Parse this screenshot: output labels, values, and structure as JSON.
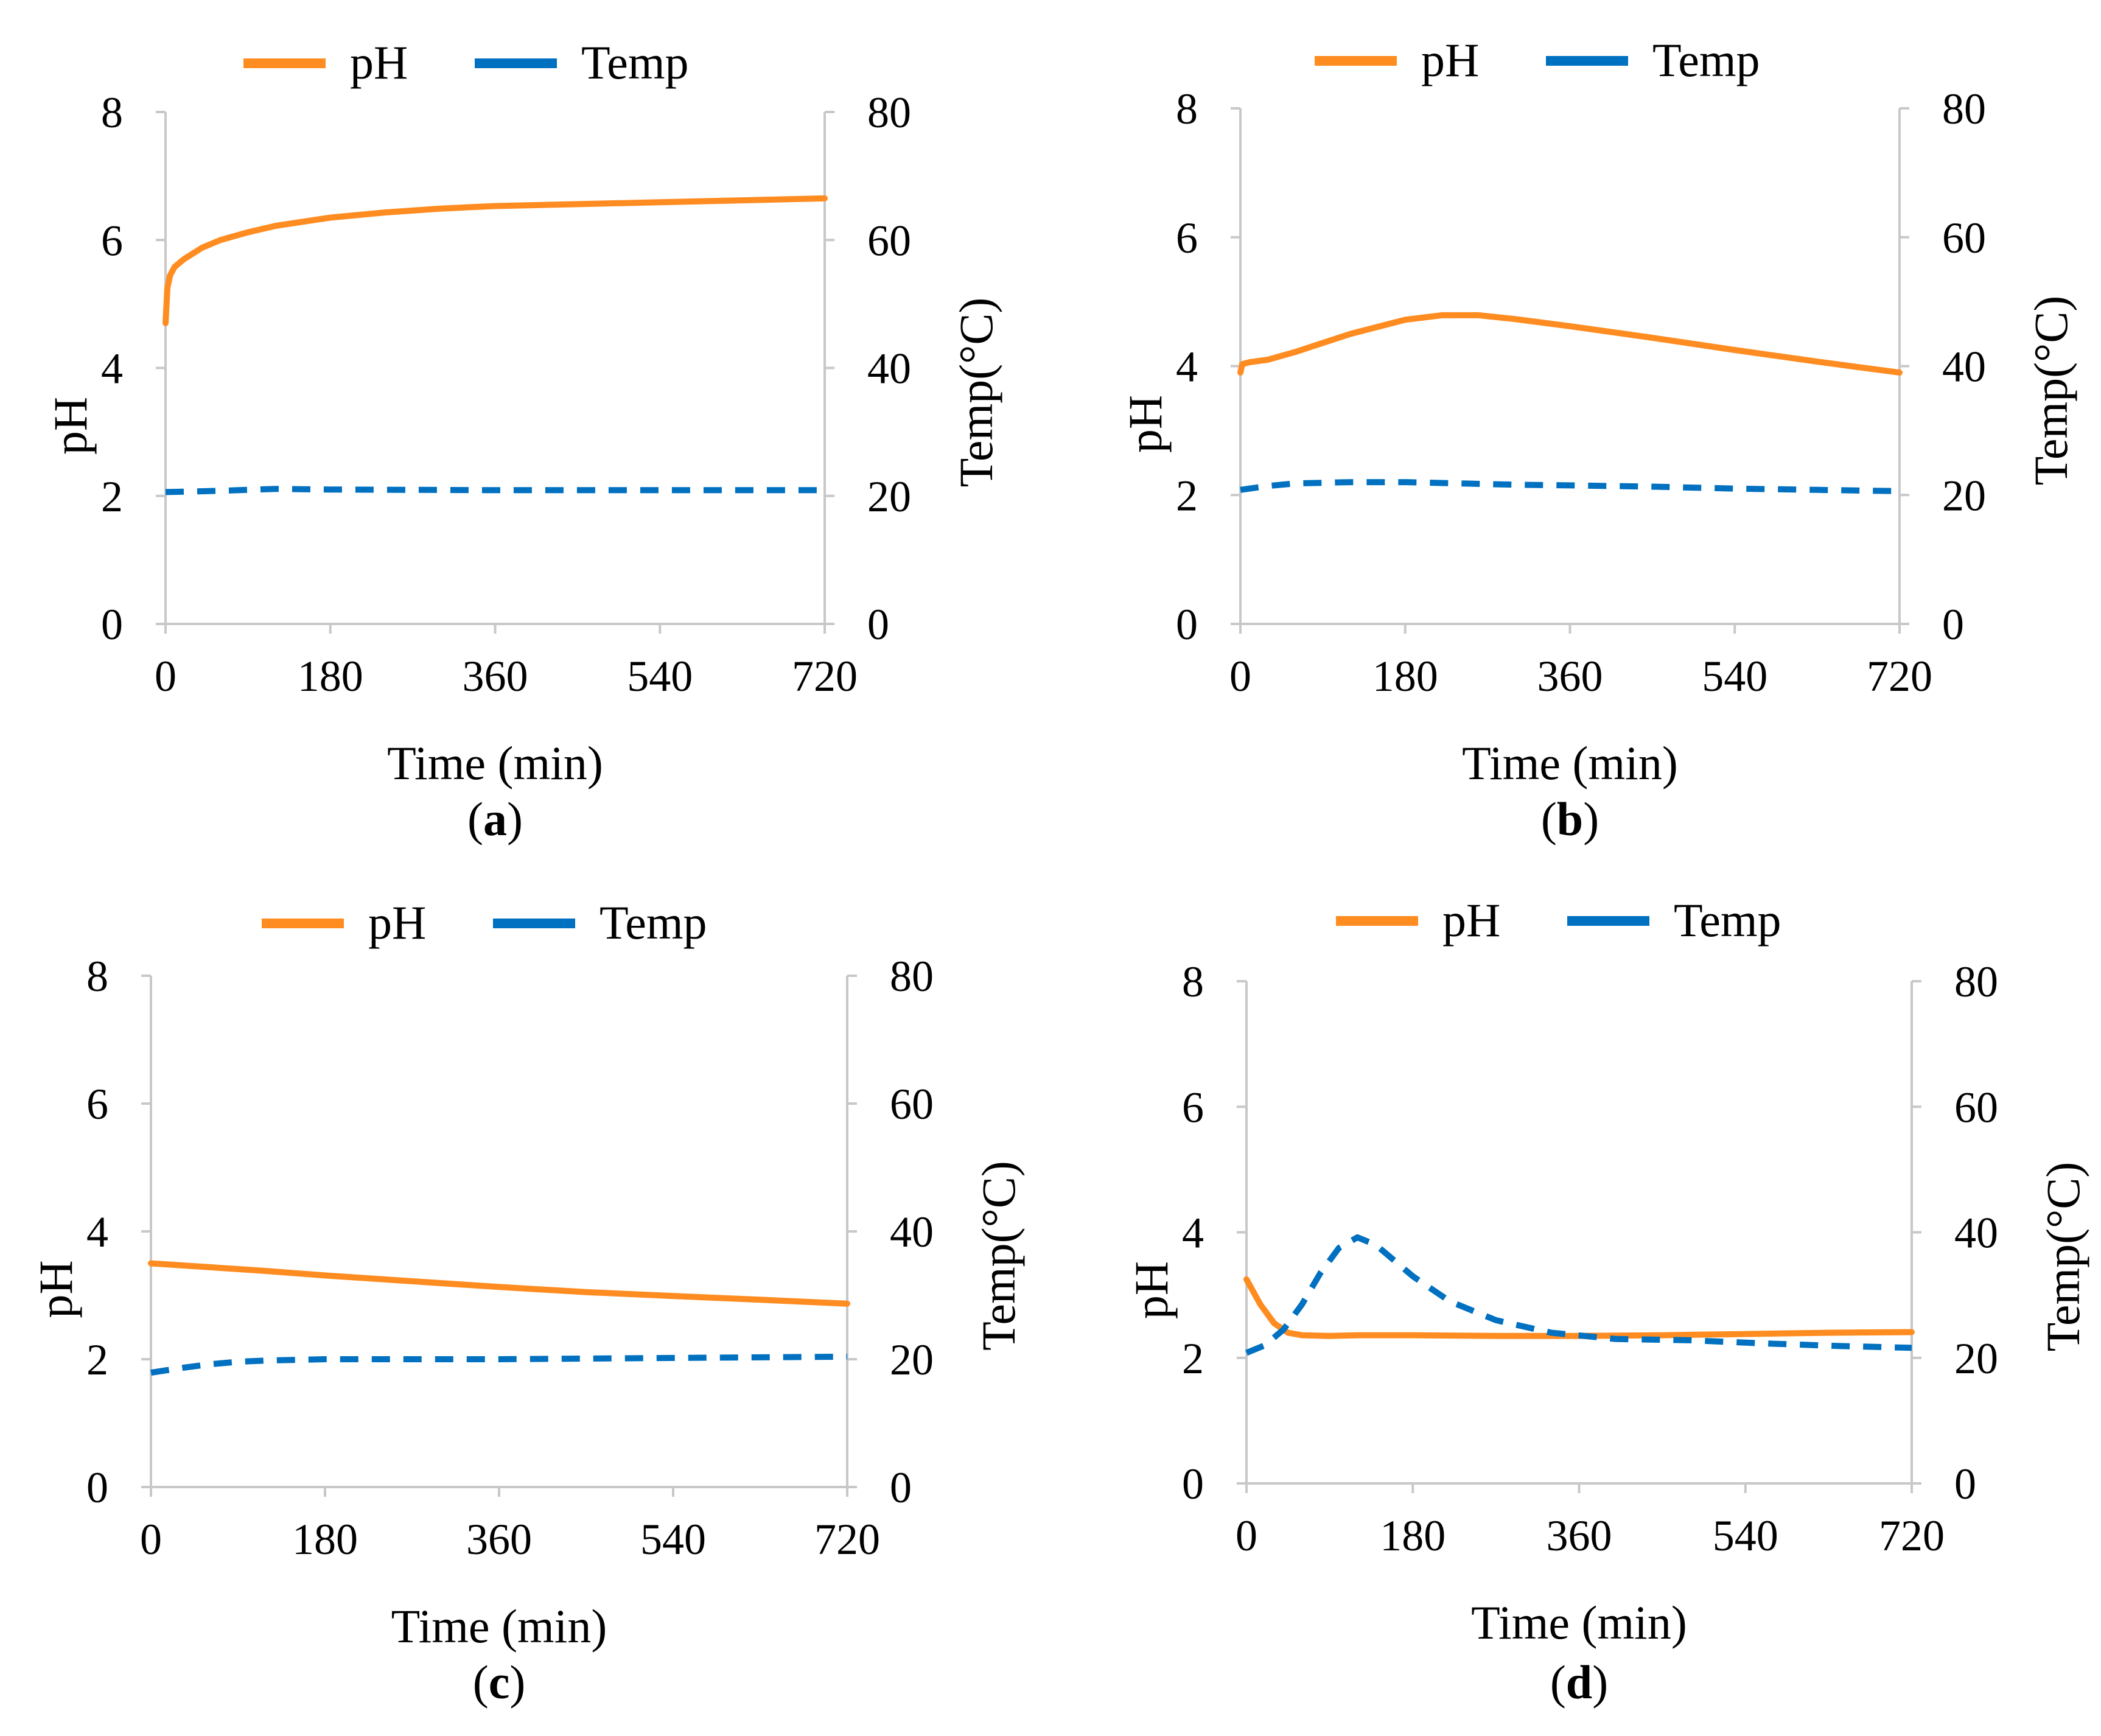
{
  "figure": {
    "title": ""
  },
  "colors": {
    "ph": "#FF8C21",
    "temp": "#0070C0",
    "axis": "#C8C8C8"
  },
  "legend_items": {
    "ph": "pH",
    "temp": "Temp"
  },
  "chart_data": [
    {
      "panel_label": {
        "open": "(",
        "letter": "a",
        "close": ")"
      },
      "type": "line",
      "xlabel": "Time (min)",
      "ylabel": "pH",
      "y2label": "Temp(°C)",
      "xlim": [
        0,
        720
      ],
      "ylim": [
        0,
        8
      ],
      "y2lim": [
        0,
        80
      ],
      "xticks": [
        0,
        180,
        360,
        540,
        720
      ],
      "yticks": [
        0,
        2,
        4,
        6,
        8
      ],
      "y2ticks": [
        0,
        20,
        40,
        60,
        80
      ],
      "grid": false,
      "legend": "top",
      "series": [
        {
          "name": "pH",
          "axis": "left",
          "style": "solid",
          "x": [
            0,
            2,
            5,
            10,
            20,
            40,
            60,
            90,
            120,
            180,
            240,
            300,
            360,
            450,
            540,
            630,
            720
          ],
          "values": [
            4.7,
            5.25,
            5.45,
            5.58,
            5.7,
            5.88,
            6.0,
            6.12,
            6.22,
            6.35,
            6.43,
            6.49,
            6.53,
            6.56,
            6.59,
            6.62,
            6.65
          ]
        },
        {
          "name": "Temp",
          "axis": "right",
          "style": "dashed",
          "x": [
            0,
            60,
            120,
            180,
            360,
            540,
            720
          ],
          "values": [
            20.6,
            20.8,
            21.1,
            21.0,
            20.9,
            20.9,
            20.9
          ]
        }
      ]
    },
    {
      "panel_label": {
        "open": "(",
        "letter": "b",
        "close": ")"
      },
      "type": "line",
      "xlabel": "Time (min)",
      "ylabel": "pH",
      "y2label": "Temp(°C)",
      "xlim": [
        0,
        720
      ],
      "ylim": [
        0,
        8
      ],
      "y2lim": [
        0,
        80
      ],
      "xticks": [
        0,
        180,
        360,
        540,
        720
      ],
      "yticks": [
        0,
        2,
        4,
        6,
        8
      ],
      "y2ticks": [
        0,
        20,
        40,
        60,
        80
      ],
      "grid": false,
      "legend": "top",
      "series": [
        {
          "name": "pH",
          "axis": "left",
          "style": "solid",
          "x": [
            0,
            2,
            10,
            30,
            60,
            120,
            180,
            220,
            260,
            300,
            360,
            450,
            540,
            630,
            720
          ],
          "values": [
            3.9,
            4.03,
            4.06,
            4.1,
            4.22,
            4.5,
            4.72,
            4.79,
            4.79,
            4.73,
            4.62,
            4.44,
            4.25,
            4.07,
            3.9
          ]
        },
        {
          "name": "Temp",
          "axis": "right",
          "style": "dashed",
          "x": [
            0,
            30,
            60,
            120,
            180,
            240,
            300,
            360,
            450,
            540,
            630,
            720
          ],
          "values": [
            20.8,
            21.4,
            21.8,
            22.0,
            22.0,
            21.8,
            21.6,
            21.5,
            21.3,
            21.0,
            20.8,
            20.6
          ]
        }
      ]
    },
    {
      "panel_label": {
        "open": "(",
        "letter": "c",
        "close": ")"
      },
      "type": "line",
      "xlabel": "Time (min)",
      "ylabel": "pH",
      "y2label": "Temp(°C)",
      "xlim": [
        0,
        720
      ],
      "ylim": [
        0,
        8
      ],
      "y2lim": [
        0,
        80
      ],
      "xticks": [
        0,
        180,
        360,
        540,
        720
      ],
      "yticks": [
        0,
        2,
        4,
        6,
        8
      ],
      "y2ticks": [
        0,
        20,
        40,
        60,
        80
      ],
      "grid": false,
      "legend": "top",
      "series": [
        {
          "name": "pH",
          "axis": "left",
          "style": "solid",
          "x": [
            0,
            60,
            120,
            180,
            270,
            360,
            450,
            540,
            630,
            720
          ],
          "values": [
            3.5,
            3.44,
            3.38,
            3.31,
            3.22,
            3.13,
            3.05,
            2.99,
            2.93,
            2.87
          ]
        },
        {
          "name": "Temp",
          "axis": "right",
          "style": "dashed",
          "x": [
            0,
            30,
            60,
            90,
            120,
            180,
            360,
            540,
            720
          ],
          "values": [
            17.9,
            18.6,
            19.2,
            19.6,
            19.8,
            20.0,
            20.0,
            20.2,
            20.4
          ]
        }
      ]
    },
    {
      "panel_label": {
        "open": "(",
        "letter": "d",
        "close": ")"
      },
      "type": "line",
      "xlabel": "Time (min)",
      "ylabel": "pH",
      "y2label": "Temp(°C)",
      "xlim": [
        0,
        720
      ],
      "ylim": [
        0,
        8
      ],
      "y2lim": [
        0,
        80
      ],
      "xticks": [
        0,
        180,
        360,
        540,
        720
      ],
      "yticks": [
        0,
        2,
        4,
        6,
        8
      ],
      "y2ticks": [
        0,
        20,
        40,
        60,
        80
      ],
      "grid": false,
      "legend": "top",
      "series": [
        {
          "name": "pH",
          "axis": "left",
          "style": "solid",
          "x": [
            0,
            15,
            30,
            45,
            60,
            90,
            120,
            180,
            270,
            360,
            450,
            540,
            630,
            720
          ],
          "values": [
            3.25,
            2.85,
            2.55,
            2.4,
            2.36,
            2.35,
            2.36,
            2.36,
            2.35,
            2.35,
            2.36,
            2.38,
            2.4,
            2.41
          ]
        },
        {
          "name": "Temp",
          "axis": "right",
          "style": "dashed",
          "x": [
            0,
            20,
            40,
            60,
            80,
            100,
            120,
            140,
            160,
            180,
            220,
            270,
            330,
            400,
            480,
            560,
            640,
            720
          ],
          "values": [
            20.8,
            22.0,
            24.5,
            28.5,
            33.5,
            37.5,
            39.2,
            38.0,
            35.5,
            33.0,
            29.0,
            26.0,
            24.0,
            23.0,
            22.8,
            22.3,
            21.9,
            21.6
          ]
        }
      ]
    }
  ]
}
